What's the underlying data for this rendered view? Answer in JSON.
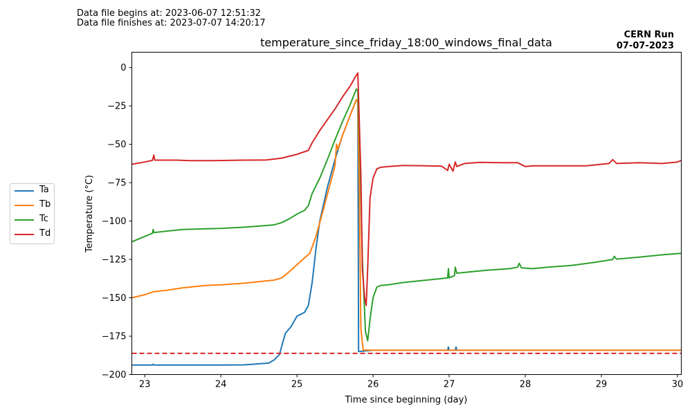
{
  "header": {
    "begins": "Data file begins at: 2023-06-07 12:51:32",
    "finishes": "Data file finishes at: 2023-07-07 14:20:17",
    "run_title": "CERN Run",
    "run_date": "07-07-2023"
  },
  "chart_data": {
    "type": "line",
    "title": "temperature_since_friday_18:00_windows_final_data",
    "xlabel": "Time since beginning (day)",
    "ylabel": "Temperature (°C)",
    "xlim": [
      22.83,
      30.05
    ],
    "ylim": [
      -200,
      10
    ],
    "xticks": [
      23,
      24,
      25,
      26,
      27,
      28,
      29,
      30
    ],
    "yticks": [
      0,
      -25,
      -50,
      -75,
      -100,
      -125,
      -150,
      -175,
      -200
    ],
    "grid": false,
    "legend_position": "left-outside",
    "reference_line": {
      "y": -186.2,
      "style": "dashed",
      "color": "#d62728"
    },
    "series": [
      {
        "name": "Ta",
        "color": "#1f77b4",
        "points": [
          [
            22.83,
            -193.8
          ],
          [
            23.1,
            -193.8
          ],
          [
            23.11,
            -193.3
          ],
          [
            23.12,
            -193.8
          ],
          [
            24.0,
            -193.8
          ],
          [
            24.3,
            -193.7
          ],
          [
            24.5,
            -193.0
          ],
          [
            24.63,
            -192.5
          ],
          [
            24.7,
            -190.5
          ],
          [
            24.77,
            -187.0
          ],
          [
            24.82,
            -178.0
          ],
          [
            24.85,
            -173.0
          ],
          [
            24.92,
            -169.0
          ],
          [
            25.0,
            -162.0
          ],
          [
            25.1,
            -159.5
          ],
          [
            25.15,
            -155.0
          ],
          [
            25.2,
            -140.0
          ],
          [
            25.25,
            -118.0
          ],
          [
            25.3,
            -100.0
          ],
          [
            25.4,
            -78.0
          ],
          [
            25.5,
            -60.0
          ],
          [
            25.6,
            -44.0
          ],
          [
            25.7,
            -31.0
          ],
          [
            25.78,
            -21.0
          ],
          [
            25.8,
            -22.0
          ],
          [
            25.81,
            -185.0
          ],
          [
            26.0,
            -184.2
          ],
          [
            26.5,
            -184.2
          ],
          [
            26.98,
            -184.2
          ],
          [
            26.99,
            -182.0
          ],
          [
            27.0,
            -184.2
          ],
          [
            27.08,
            -184.2
          ],
          [
            27.09,
            -182.0
          ],
          [
            27.1,
            -184.2
          ],
          [
            28.0,
            -184.2
          ],
          [
            29.0,
            -184.2
          ],
          [
            30.05,
            -184.2
          ]
        ]
      },
      {
        "name": "Tb",
        "color": "#ff7f0e",
        "points": [
          [
            22.83,
            -150.0
          ],
          [
            23.0,
            -148.0
          ],
          [
            23.12,
            -146.0
          ],
          [
            23.3,
            -145.0
          ],
          [
            23.5,
            -143.5
          ],
          [
            23.8,
            -142.0
          ],
          [
            24.0,
            -141.5
          ],
          [
            24.3,
            -140.5
          ],
          [
            24.5,
            -139.5
          ],
          [
            24.7,
            -138.5
          ],
          [
            24.8,
            -137.0
          ],
          [
            24.9,
            -133.0
          ],
          [
            25.0,
            -128.5
          ],
          [
            25.1,
            -124.0
          ],
          [
            25.17,
            -121.0
          ],
          [
            25.25,
            -110.0
          ],
          [
            25.35,
            -92.0
          ],
          [
            25.5,
            -64.0
          ],
          [
            25.52,
            -50.0
          ],
          [
            25.54,
            -53.0
          ],
          [
            25.6,
            -44.0
          ],
          [
            25.7,
            -31.0
          ],
          [
            25.78,
            -21.0
          ],
          [
            25.8,
            -22.0
          ],
          [
            25.82,
            -80.0
          ],
          [
            25.84,
            -170.0
          ],
          [
            25.87,
            -184.0
          ],
          [
            26.0,
            -184.2
          ],
          [
            26.3,
            -184.2
          ],
          [
            27.0,
            -184.2
          ],
          [
            28.0,
            -184.2
          ],
          [
            29.0,
            -184.2
          ],
          [
            30.05,
            -184.2
          ]
        ]
      },
      {
        "name": "Tc",
        "color": "#2ca02c",
        "points": [
          [
            22.83,
            -113.5
          ],
          [
            23.0,
            -110.0
          ],
          [
            23.1,
            -108.0
          ],
          [
            23.11,
            -105.5
          ],
          [
            23.12,
            -107.5
          ],
          [
            23.3,
            -106.5
          ],
          [
            23.5,
            -105.5
          ],
          [
            23.8,
            -105.0
          ],
          [
            24.0,
            -104.8
          ],
          [
            24.3,
            -104.0
          ],
          [
            24.5,
            -103.3
          ],
          [
            24.7,
            -102.5
          ],
          [
            24.8,
            -101.0
          ],
          [
            24.9,
            -98.5
          ],
          [
            25.0,
            -95.5
          ],
          [
            25.1,
            -93.0
          ],
          [
            25.15,
            -90.0
          ],
          [
            25.2,
            -82.0
          ],
          [
            25.3,
            -72.0
          ],
          [
            25.4,
            -60.0
          ],
          [
            25.5,
            -47.0
          ],
          [
            25.6,
            -35.0
          ],
          [
            25.7,
            -24.0
          ],
          [
            25.78,
            -14.0
          ],
          [
            25.8,
            -15.0
          ],
          [
            25.83,
            -60.0
          ],
          [
            25.86,
            -125.0
          ],
          [
            25.9,
            -172.0
          ],
          [
            25.93,
            -178.0
          ],
          [
            25.96,
            -164.0
          ],
          [
            26.0,
            -150.0
          ],
          [
            26.05,
            -143.0
          ],
          [
            26.1,
            -142.0
          ],
          [
            26.2,
            -141.5
          ],
          [
            26.4,
            -140.0
          ],
          [
            26.6,
            -139.0
          ],
          [
            26.9,
            -137.5
          ],
          [
            26.98,
            -137.0
          ],
          [
            26.99,
            -131.0
          ],
          [
            27.0,
            -137.0
          ],
          [
            27.07,
            -135.5
          ],
          [
            27.08,
            -130.0
          ],
          [
            27.1,
            -134.0
          ],
          [
            27.2,
            -133.5
          ],
          [
            27.5,
            -132.0
          ],
          [
            27.8,
            -131.0
          ],
          [
            27.9,
            -130.0
          ],
          [
            27.92,
            -127.5
          ],
          [
            27.95,
            -130.5
          ],
          [
            28.1,
            -131.0
          ],
          [
            28.3,
            -130.0
          ],
          [
            28.6,
            -129.0
          ],
          [
            28.9,
            -127.0
          ],
          [
            29.15,
            -125.0
          ],
          [
            29.17,
            -123.0
          ],
          [
            29.2,
            -124.8
          ],
          [
            29.5,
            -123.5
          ],
          [
            29.8,
            -122.0
          ],
          [
            30.05,
            -121.0
          ]
        ]
      },
      {
        "name": "Td",
        "color": "#d62728",
        "points": [
          [
            22.83,
            -63.0
          ],
          [
            23.0,
            -61.5
          ],
          [
            23.1,
            -60.5
          ],
          [
            23.12,
            -57.0
          ],
          [
            23.13,
            -60.3
          ],
          [
            23.4,
            -60.3
          ],
          [
            23.6,
            -60.6
          ],
          [
            23.9,
            -60.6
          ],
          [
            24.3,
            -60.3
          ],
          [
            24.6,
            -60.2
          ],
          [
            24.8,
            -59.0
          ],
          [
            25.0,
            -56.5
          ],
          [
            25.15,
            -54.0
          ],
          [
            25.2,
            -49.0
          ],
          [
            25.3,
            -41.0
          ],
          [
            25.4,
            -34.0
          ],
          [
            25.5,
            -27.0
          ],
          [
            25.6,
            -19.0
          ],
          [
            25.7,
            -12.0
          ],
          [
            25.78,
            -5.0
          ],
          [
            25.8,
            -3.5
          ],
          [
            25.84,
            -70.0
          ],
          [
            25.86,
            -132.0
          ],
          [
            25.89,
            -150.0
          ],
          [
            25.91,
            -155.0
          ],
          [
            25.93,
            -130.0
          ],
          [
            25.96,
            -85.0
          ],
          [
            26.0,
            -72.0
          ],
          [
            26.05,
            -66.0
          ],
          [
            26.1,
            -65.0
          ],
          [
            26.2,
            -64.5
          ],
          [
            26.4,
            -63.8
          ],
          [
            26.7,
            -64.0
          ],
          [
            26.9,
            -64.2
          ],
          [
            26.98,
            -67.0
          ],
          [
            27.0,
            -63.0
          ],
          [
            27.05,
            -67.5
          ],
          [
            27.08,
            -61.5
          ],
          [
            27.1,
            -64.5
          ],
          [
            27.2,
            -62.5
          ],
          [
            27.4,
            -61.8
          ],
          [
            27.7,
            -62.0
          ],
          [
            27.9,
            -62.0
          ],
          [
            28.0,
            -64.5
          ],
          [
            28.1,
            -64.0
          ],
          [
            28.4,
            -64.0
          ],
          [
            28.8,
            -64.0
          ],
          [
            29.1,
            -62.5
          ],
          [
            29.15,
            -60.0
          ],
          [
            29.2,
            -62.5
          ],
          [
            29.5,
            -62.0
          ],
          [
            29.8,
            -62.5
          ],
          [
            30.0,
            -61.5
          ],
          [
            30.05,
            -60.5
          ]
        ]
      }
    ]
  }
}
